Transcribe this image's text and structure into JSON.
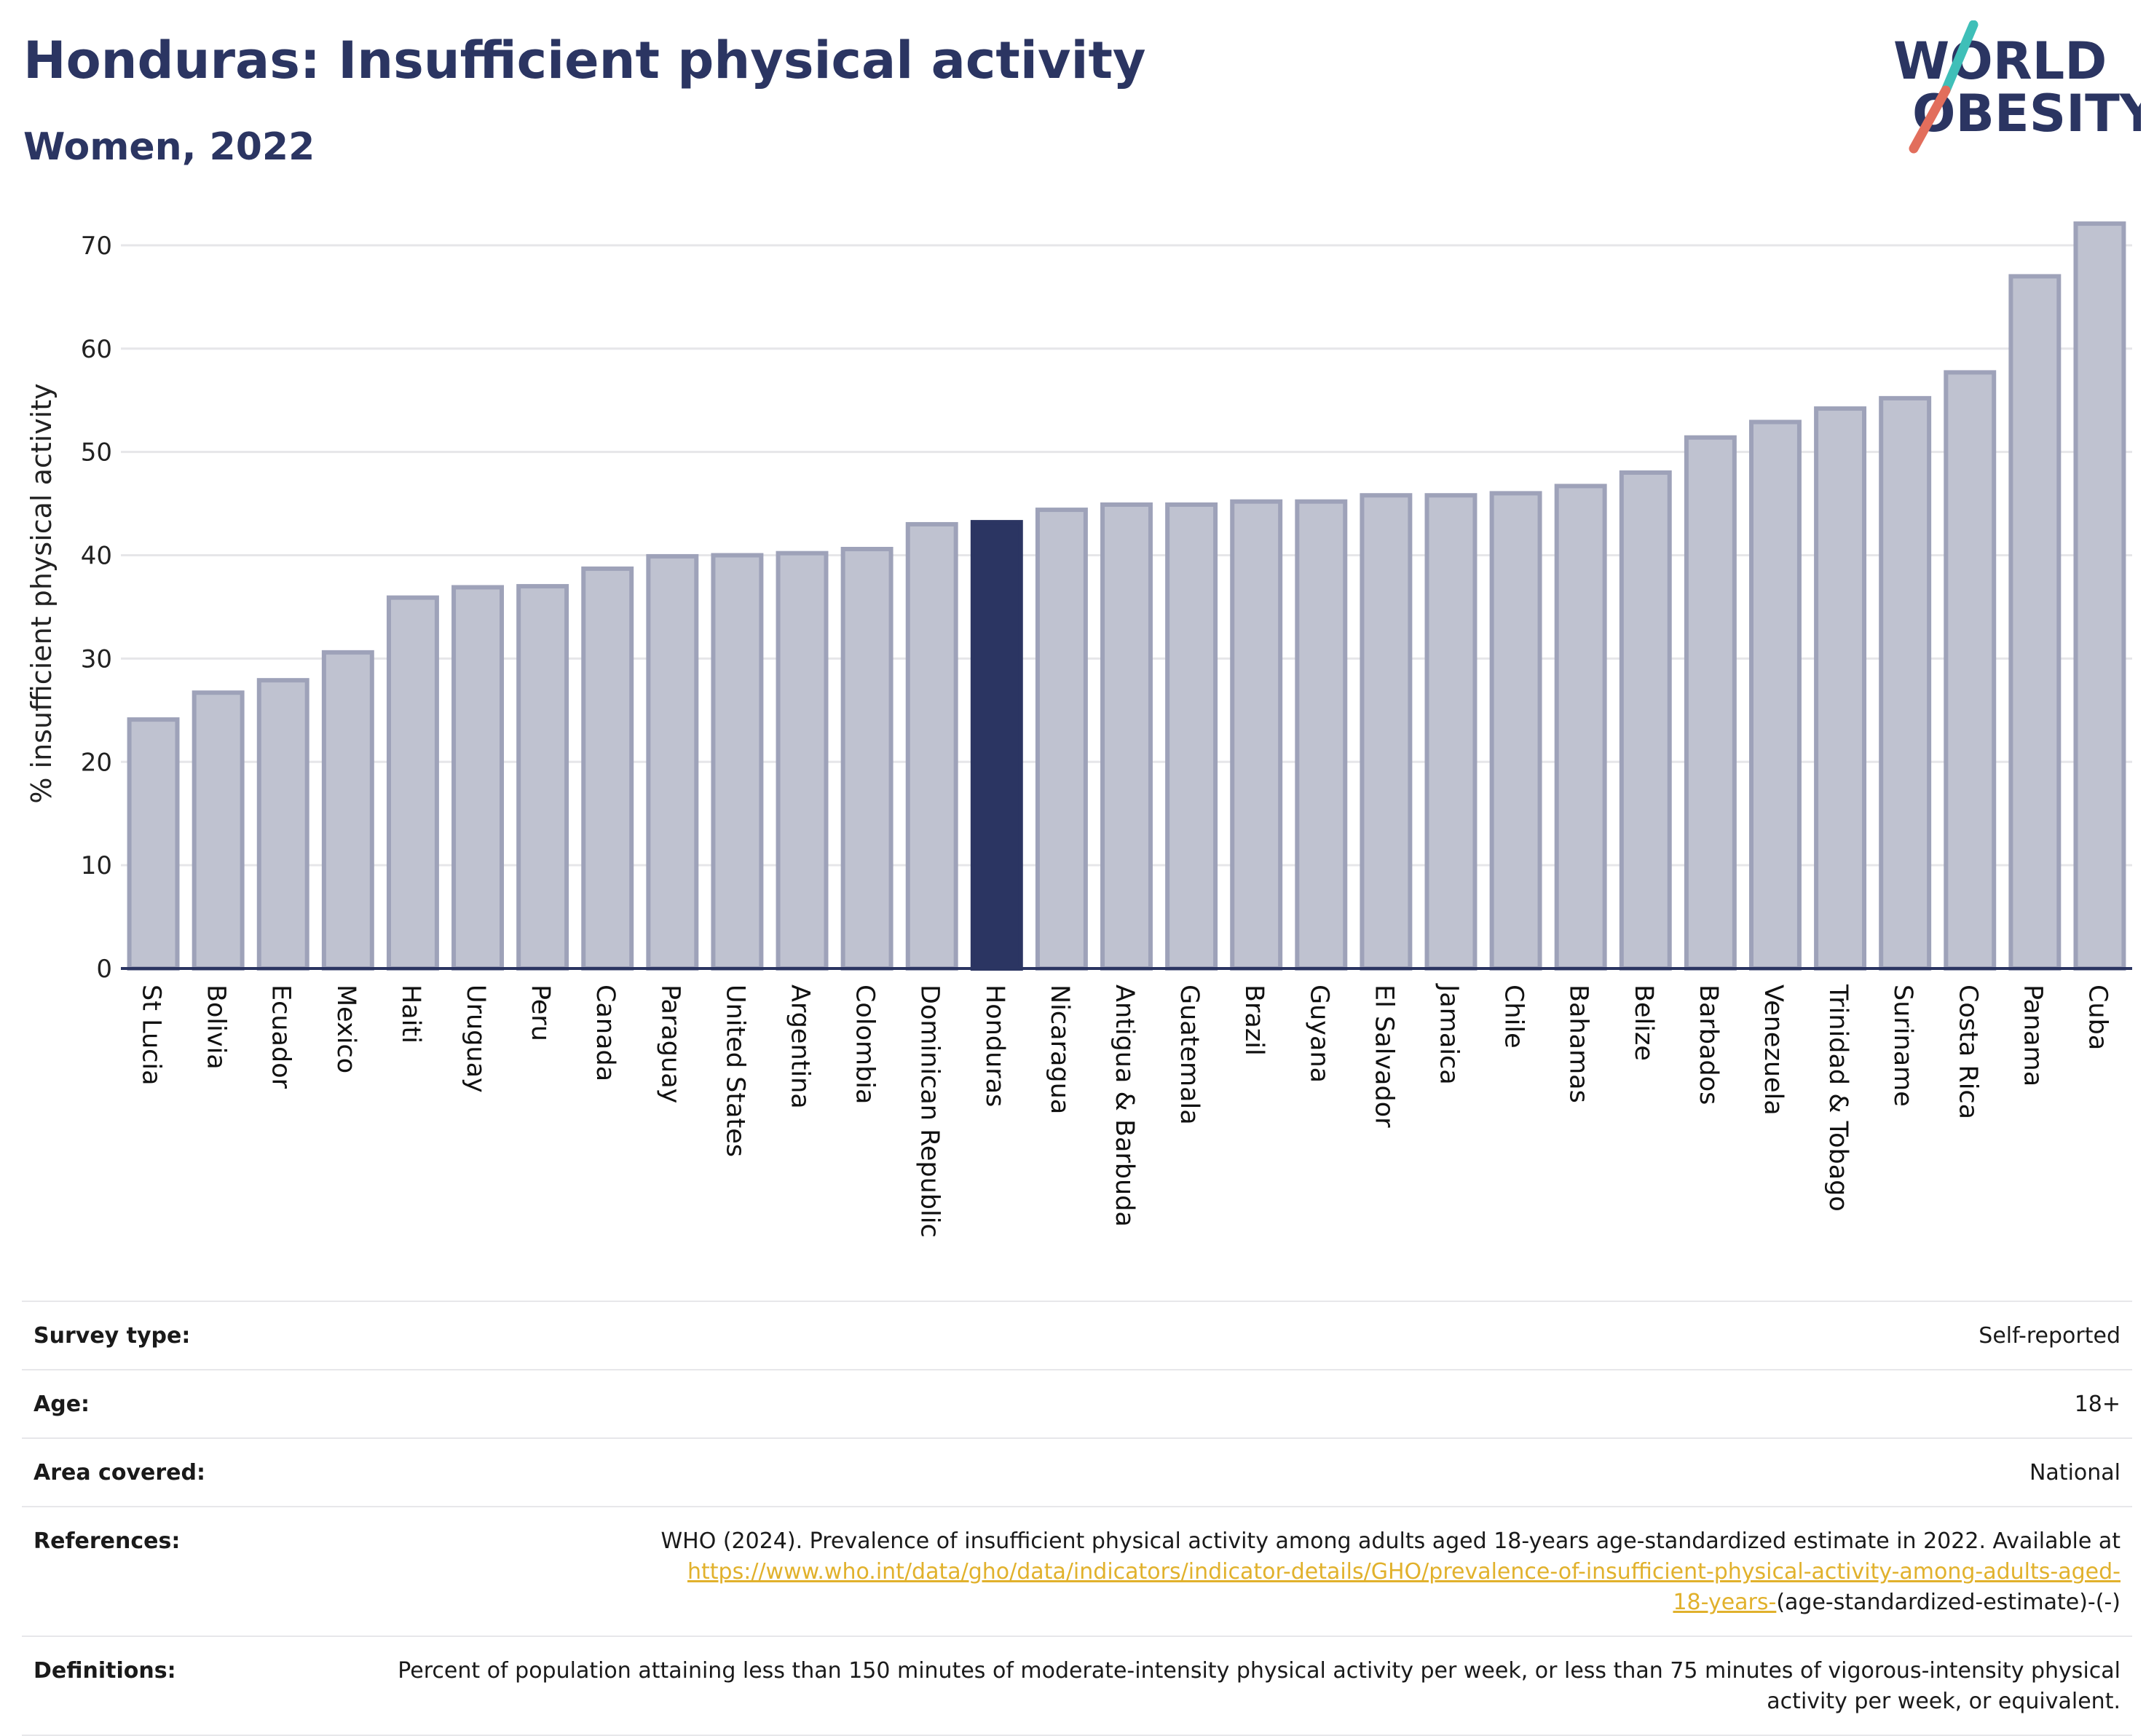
{
  "header": {
    "title": "Honduras: Insufficient physical activity",
    "subtitle": "Women, 2022",
    "logo_line1_left": "W",
    "logo_line1_o": "O",
    "logo_line1_right": "RLD",
    "logo_line2_o": "O",
    "logo_line2_rest": "BESITY"
  },
  "colors": {
    "title": "#2b3562",
    "bar": "#bfc2d0",
    "bar_border": "#9ea2b9",
    "highlight": "#2b3562",
    "link": "#e1b12c",
    "logo_teal": "#3fbfb8",
    "logo_coral": "#e26e5c"
  },
  "chart_data": {
    "type": "bar",
    "ylabel": "% insufficient physical activity",
    "ylim": [
      0,
      72.6
    ],
    "yticks": [
      0,
      10,
      20,
      30,
      40,
      50,
      60,
      70
    ],
    "grid": true,
    "highlight": "Honduras",
    "categories": [
      "St Lucia",
      "Bolivia",
      "Ecuador",
      "Mexico",
      "Haiti",
      "Uruguay",
      "Peru",
      "Canada",
      "Paraguay",
      "United States",
      "Argentina",
      "Colombia",
      "Dominican Republic",
      "Honduras",
      "Nicaragua",
      "Antigua & Barbuda",
      "Guatemala",
      "Brazil",
      "Guyana",
      "El Salvador",
      "Jamaica",
      "Chile",
      "Bahamas",
      "Belize",
      "Barbados",
      "Venezuela",
      "Trinidad & Tobago",
      "Suriname",
      "Costa Rica",
      "Panama",
      "Cuba"
    ],
    "values": [
      24.1,
      26.7,
      27.9,
      30.6,
      35.9,
      36.9,
      37.0,
      38.7,
      39.9,
      40.0,
      40.2,
      40.6,
      43.0,
      43.2,
      44.4,
      44.9,
      44.9,
      45.2,
      45.2,
      45.8,
      45.8,
      46.0,
      46.7,
      48.0,
      51.4,
      52.9,
      54.2,
      55.2,
      57.7,
      67.0,
      72.1
    ]
  },
  "info": {
    "survey_type_label": "Survey type:",
    "survey_type_value": "Self-reported",
    "age_label": "Age:",
    "age_value": "18+",
    "area_label": "Area covered:",
    "area_value": "National",
    "references_label": "References:",
    "references_text": "WHO (2024). Prevalence of insufficient physical activity among adults aged 18-years age-standardized estimate in 2022. Available at",
    "references_link_line1": "https://www.who.int/data/gho/data/indicators/indicator-details/GHO/prevalence-of-insufficient-physical-activity-among-adults-aged-",
    "references_link_line2": "18-years-",
    "references_tail": "(age-standardized-estimate)-(-)",
    "definitions_label": "Definitions:",
    "definitions_text": "Percent of population attaining less than 150 minutes of moderate-intensity physical activity per week, or less than 75 minutes of vigorous-intensity physical activity per week, or equivalent."
  }
}
